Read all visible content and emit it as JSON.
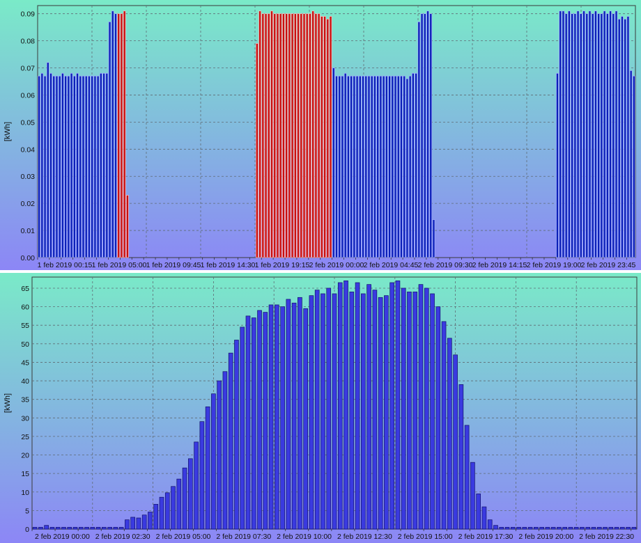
{
  "charts": [
    {
      "ylabel": "[kWh]",
      "yticks": [
        "0.00",
        "0.01",
        "0.02",
        "0.03",
        "0.04",
        "0.05",
        "0.06",
        "0.07",
        "0.08",
        "0.09"
      ],
      "xticks": [
        "1 feb 2019 00:15",
        "1 feb 2019 05:00",
        "1 feb 2019 09:45",
        "1 feb 2019 14:30",
        "1 feb 2019 19:15",
        "2 feb 2019 00:00",
        "2 feb 2019 04:45",
        "2 feb 2019 09:30",
        "2 feb 2019 14:15",
        "2 feb 2019 19:00",
        "2 feb 2019 23:45"
      ]
    },
    {
      "ylabel": "[kWh]",
      "yticks": [
        "0",
        "5",
        "10",
        "15",
        "20",
        "25",
        "30",
        "35",
        "40",
        "45",
        "50",
        "55",
        "60",
        "65"
      ],
      "xticks": [
        "2 feb 2019 00:00",
        "2 feb 2019 02:30",
        "2 feb 2019 05:00",
        "2 feb 2019 07:30",
        "2 feb 2019 10:00",
        "2 feb 2019 12:30",
        "2 feb 2019 15:00",
        "2 feb 2019 17:30",
        "2 feb 2019 20:00",
        "2 feb 2019 22:30"
      ]
    }
  ],
  "chart_data": [
    {
      "type": "bar",
      "ylabel": "[kWh]",
      "ylim": [
        0,
        0.093
      ],
      "grid": true,
      "interval_minutes": 15,
      "colors": {
        "blue": "#0b1fb8",
        "red": "#c80f0f"
      },
      "values": [
        0.067,
        0.068,
        0.067,
        0.072,
        0.068,
        0.067,
        0.067,
        0.067,
        0.068,
        0.067,
        0.067,
        0.068,
        0.067,
        0.068,
        0.067,
        0.067,
        0.067,
        0.067,
        0.067,
        0.067,
        0.067,
        0.068,
        0.068,
        0.068,
        0.087,
        0.091,
        0.09,
        0.09,
        0.09,
        0.091,
        0.023,
        0,
        0,
        0,
        0,
        0,
        0,
        0,
        0,
        0,
        0,
        0,
        0,
        0,
        0,
        0,
        0,
        0,
        0,
        0,
        0,
        0,
        0,
        0,
        0,
        0,
        0,
        0,
        0,
        0,
        0,
        0,
        0,
        0,
        0,
        0,
        0,
        0,
        0,
        0,
        0,
        0,
        0,
        0,
        0.079,
        0.091,
        0.09,
        0.09,
        0.09,
        0.091,
        0.09,
        0.09,
        0.09,
        0.09,
        0.09,
        0.09,
        0.09,
        0.09,
        0.09,
        0.09,
        0.09,
        0.09,
        0.09,
        0.091,
        0.09,
        0.09,
        0.089,
        0.089,
        0.088,
        0.089,
        0.07,
        0.067,
        0.067,
        0.067,
        0.068,
        0.067,
        0.067,
        0.067,
        0.067,
        0.067,
        0.067,
        0.067,
        0.067,
        0.067,
        0.067,
        0.067,
        0.067,
        0.067,
        0.067,
        0.067,
        0.067,
        0.067,
        0.067,
        0.067,
        0.067,
        0.066,
        0.067,
        0.068,
        0.068,
        0.087,
        0.09,
        0.09,
        0.091,
        0.09,
        0.014,
        0,
        0,
        0,
        0,
        0,
        0,
        0,
        0,
        0,
        0,
        0,
        0,
        0,
        0,
        0,
        0,
        0,
        0,
        0,
        0,
        0,
        0,
        0,
        0,
        0,
        0,
        0,
        0,
        0,
        0,
        0,
        0,
        0,
        0,
        0,
        0,
        0,
        0,
        0,
        0,
        0,
        0.068,
        0.091,
        0.091,
        0.09,
        0.091,
        0.09,
        0.09,
        0.091,
        0.09,
        0.091,
        0.09,
        0.091,
        0.09,
        0.091,
        0.09,
        0.09,
        0.091,
        0.09,
        0.091,
        0.09,
        0.091,
        0.088,
        0.089,
        0.088,
        0.089,
        0.069,
        0.067
      ],
      "red_ranges": [
        [
          27,
          31
        ],
        [
          74,
          99
        ]
      ]
    },
    {
      "type": "bar",
      "ylabel": "[kWh]",
      "ylim": [
        0,
        68
      ],
      "grid": true,
      "interval_minutes": 15,
      "color": "#3a3ae0",
      "values": [
        0.5,
        0.5,
        1,
        0.5,
        0.5,
        0.5,
        0.5,
        0.5,
        0.5,
        0.5,
        0.5,
        0.5,
        0.5,
        0.5,
        0.5,
        0.5,
        2.5,
        3.2,
        3,
        3.8,
        4.6,
        6.7,
        8.6,
        9.8,
        11.5,
        13.5,
        16.5,
        19,
        23.5,
        29,
        33,
        36.5,
        40,
        42.5,
        47.5,
        51,
        54.5,
        57.5,
        57,
        59,
        58.5,
        60.5,
        60.5,
        60,
        62,
        61,
        62.5,
        59.5,
        63,
        64.5,
        63.5,
        65,
        63.5,
        66.5,
        67,
        64,
        66.5,
        63.5,
        66,
        64.5,
        62.5,
        63,
        66.5,
        67,
        65,
        64,
        64,
        66,
        65,
        63.5,
        60,
        56,
        51.5,
        47,
        39,
        28,
        18,
        9.5,
        6,
        2.5,
        1,
        0.5,
        0.5,
        0.5,
        0.5,
        0.5,
        0.5,
        0.5,
        0.5,
        0.5,
        0.5,
        0.5,
        0.5,
        0.5,
        0.5,
        0.5,
        0.5,
        0.5,
        0.5,
        0.5,
        0.5,
        0.5,
        0.5,
        0.5,
        0.5
      ]
    }
  ]
}
